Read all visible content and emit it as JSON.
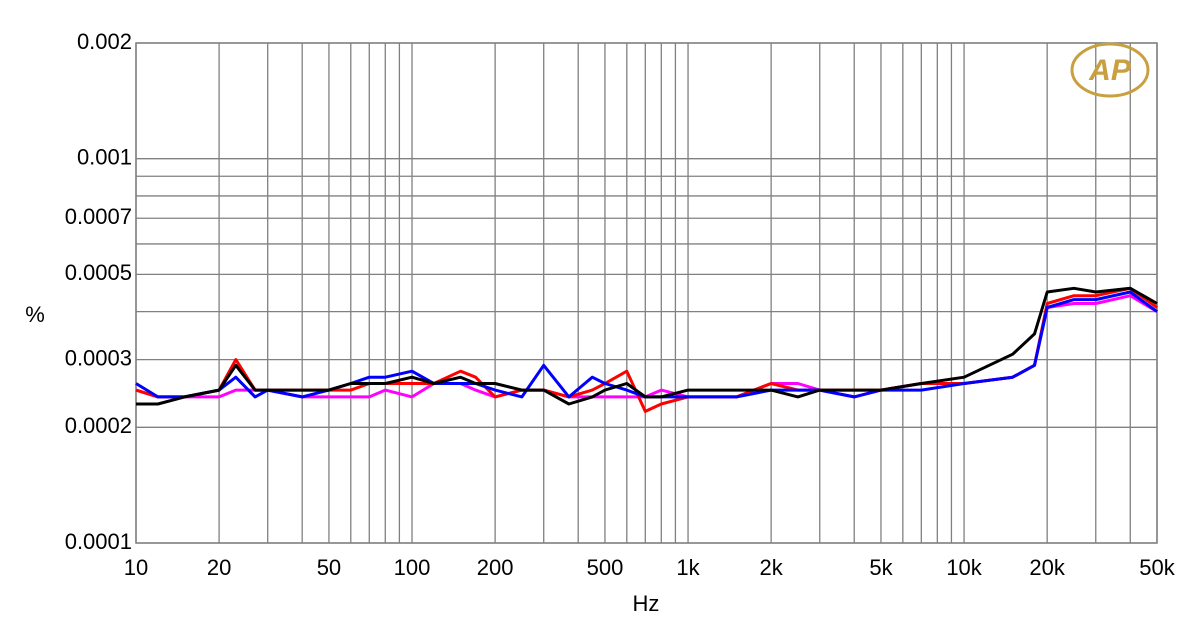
{
  "chart_data": {
    "type": "line",
    "x_label": "Hz",
    "y_label": "%",
    "logo_text": "AP",
    "x_log": true,
    "y_log": true,
    "grid": true,
    "xlim": [
      10,
      50000
    ],
    "xticks": [
      10,
      20,
      50,
      100,
      200,
      500,
      {
        "value": 1000,
        "label": "1k"
      },
      {
        "value": 2000,
        "label": "2k"
      },
      {
        "value": 5000,
        "label": "5k"
      },
      {
        "value": 10000,
        "label": "10k"
      },
      {
        "value": 20000,
        "label": "20k"
      },
      {
        "value": 50000,
        "label": "50k"
      }
    ],
    "x_minor_gridlines": [
      30,
      40,
      60,
      70,
      80,
      90,
      300,
      400,
      600,
      700,
      800,
      900,
      3000,
      4000,
      6000,
      7000,
      8000,
      9000,
      30000,
      40000
    ],
    "ylim": [
      0.0001,
      0.002
    ],
    "yticks": [
      0.0001,
      0.0002,
      0.0003,
      0.0005,
      0.0007,
      0.001,
      0.002
    ],
    "y_minor_gridlines": [
      0.0004,
      0.0006,
      0.0008,
      0.0009
    ],
    "x": [
      10,
      12,
      15,
      20,
      23,
      27,
      30,
      40,
      50,
      60,
      70,
      80,
      100,
      120,
      150,
      170,
      200,
      250,
      300,
      370,
      450,
      500,
      600,
      700,
      800,
      1000,
      1500,
      2000,
      2500,
      3000,
      4000,
      5000,
      7000,
      10000,
      15000,
      18000,
      20000,
      25000,
      30000,
      40000,
      50000
    ],
    "series": [
      {
        "color": "#ff00ff",
        "values": [
          0.00025,
          0.00024,
          0.00024,
          0.00024,
          0.00025,
          0.00025,
          0.00025,
          0.00024,
          0.00024,
          0.00024,
          0.00024,
          0.00025,
          0.00024,
          0.00026,
          0.00026,
          0.00025,
          0.00024,
          0.00025,
          0.00025,
          0.00024,
          0.00024,
          0.00024,
          0.00024,
          0.00024,
          0.00025,
          0.00024,
          0.00024,
          0.00026,
          0.00026,
          0.00025,
          0.00024,
          0.00025,
          0.00026,
          0.00026,
          0.00027,
          0.00029,
          0.00041,
          0.00042,
          0.00042,
          0.00044,
          0.0004
        ]
      },
      {
        "color": "#ff0000",
        "values": [
          0.00025,
          0.00024,
          0.00024,
          0.00025,
          0.0003,
          0.00025,
          0.00025,
          0.00025,
          0.00025,
          0.00025,
          0.00026,
          0.00026,
          0.00026,
          0.00026,
          0.00028,
          0.00027,
          0.00024,
          0.00025,
          0.00025,
          0.00024,
          0.00025,
          0.00026,
          0.00028,
          0.00022,
          0.00023,
          0.00024,
          0.00024,
          0.00026,
          0.00025,
          0.00025,
          0.00025,
          0.00025,
          0.00026,
          0.00026,
          0.00027,
          0.00029,
          0.00042,
          0.00044,
          0.00044,
          0.00046,
          0.00041
        ]
      },
      {
        "color": "#0000ff",
        "values": [
          0.00026,
          0.00024,
          0.00024,
          0.00025,
          0.00027,
          0.00024,
          0.00025,
          0.00024,
          0.00025,
          0.00026,
          0.00027,
          0.00027,
          0.00028,
          0.00026,
          0.00026,
          0.00026,
          0.00025,
          0.00024,
          0.00029,
          0.00024,
          0.00027,
          0.00026,
          0.00025,
          0.00024,
          0.00024,
          0.00024,
          0.00024,
          0.00025,
          0.00025,
          0.00025,
          0.00024,
          0.00025,
          0.00025,
          0.00026,
          0.00027,
          0.00029,
          0.00041,
          0.00043,
          0.00043,
          0.00045,
          0.0004
        ]
      },
      {
        "color": "#000000",
        "values": [
          0.00023,
          0.00023,
          0.00024,
          0.00025,
          0.00029,
          0.00025,
          0.00025,
          0.00025,
          0.00025,
          0.00026,
          0.00026,
          0.00026,
          0.00027,
          0.00026,
          0.00027,
          0.00026,
          0.00026,
          0.00025,
          0.00025,
          0.00023,
          0.00024,
          0.00025,
          0.00026,
          0.00024,
          0.00024,
          0.00025,
          0.00025,
          0.00025,
          0.00024,
          0.00025,
          0.00025,
          0.00025,
          0.00026,
          0.00027,
          0.00031,
          0.00035,
          0.00045,
          0.00046,
          0.00045,
          0.00046,
          0.00042
        ]
      }
    ]
  }
}
